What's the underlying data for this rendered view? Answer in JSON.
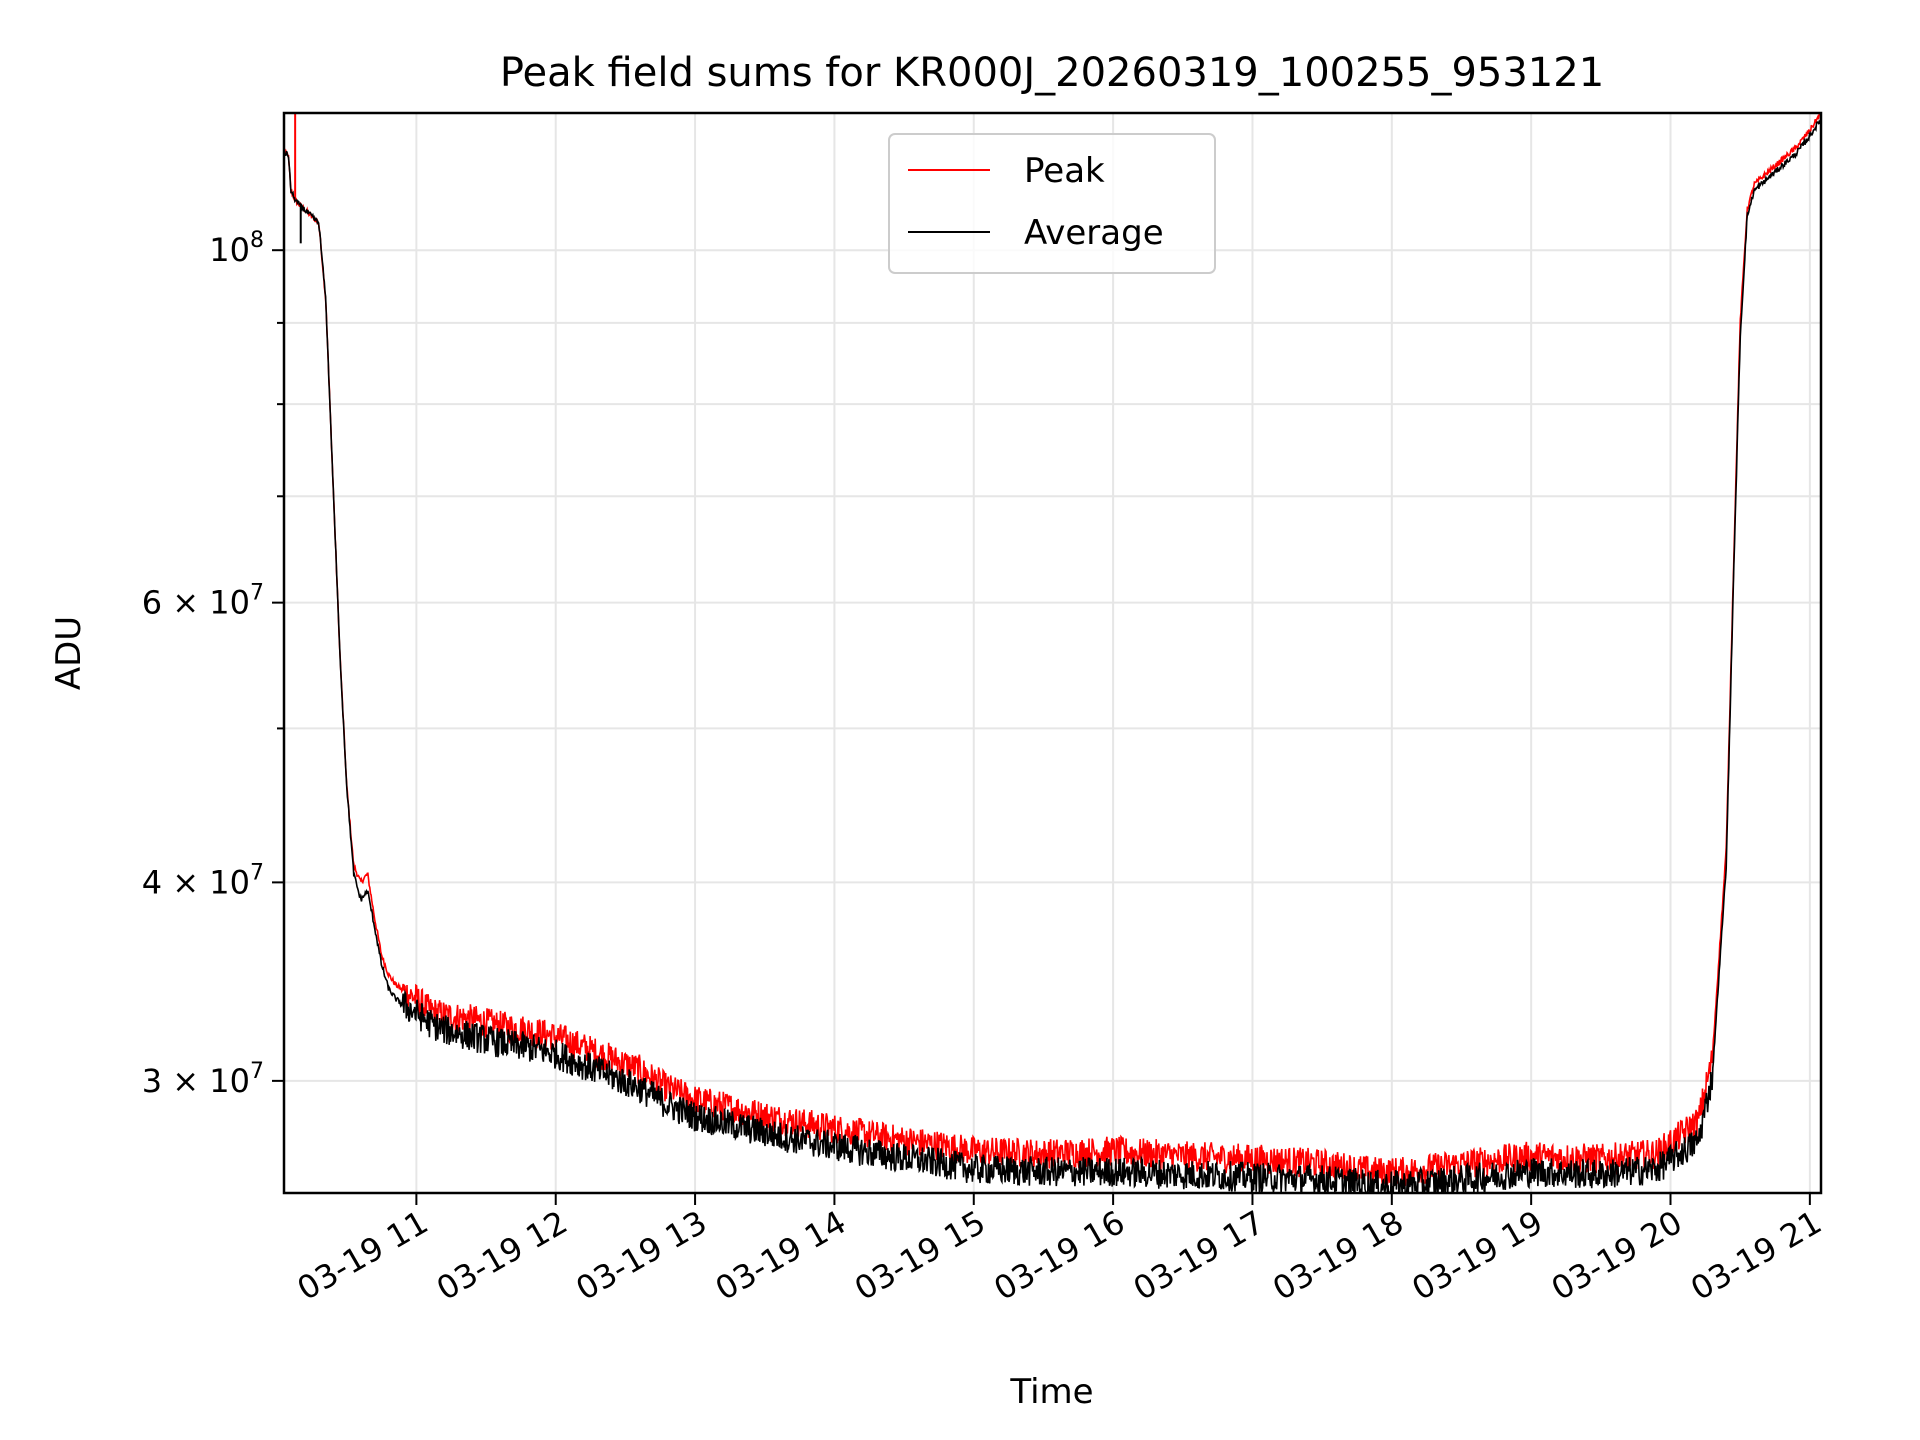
{
  "chart_data": {
    "type": "line",
    "title": "Peak field sums for KR000J_20260319_100255_953121",
    "xlabel": "Time",
    "ylabel": "ADU",
    "yscale": "log",
    "ylim": [
      25500000,
      122000000
    ],
    "xlim_hours": [
      10.05,
      21.08
    ],
    "grid": true,
    "legend_position": "top-center",
    "x_ticks": [
      {
        "label": "03-19 11",
        "hour": 11
      },
      {
        "label": "03-19 12",
        "hour": 12
      },
      {
        "label": "03-19 13",
        "hour": 13
      },
      {
        "label": "03-19 14",
        "hour": 14
      },
      {
        "label": "03-19 15",
        "hour": 15
      },
      {
        "label": "03-19 16",
        "hour": 16
      },
      {
        "label": "03-19 17",
        "hour": 17
      },
      {
        "label": "03-19 18",
        "hour": 18
      },
      {
        "label": "03-19 19",
        "hour": 19
      },
      {
        "label": "03-19 20",
        "hour": 20
      },
      {
        "label": "03-19 21",
        "hour": 21
      }
    ],
    "y_major_ticks": [
      {
        "value": 30000000,
        "mantissa": "3",
        "exponent": "7"
      },
      {
        "value": 40000000,
        "mantissa": "4",
        "exponent": "7"
      },
      {
        "value": 60000000,
        "mantissa": "6",
        "exponent": "7"
      },
      {
        "value": 100000000,
        "mantissa": "",
        "exponent": "8"
      }
    ],
    "y_minor_ticks": [
      50000000,
      70000000,
      80000000,
      90000000
    ],
    "series": [
      {
        "name": "Peak",
        "color": "#ff0000",
        "x": [
          10.05,
          10.08,
          10.1,
          10.12,
          10.15,
          10.2,
          10.3,
          10.35,
          10.4,
          10.45,
          10.5,
          10.55,
          10.6,
          10.65,
          10.7,
          10.75,
          10.8,
          10.85,
          10.9,
          10.95,
          11.0,
          11.1,
          11.2,
          11.4,
          11.6,
          11.8,
          12.0,
          12.2,
          12.4,
          12.6,
          12.8,
          13.0,
          13.3,
          13.6,
          14.0,
          14.4,
          14.8,
          15.0,
          15.5,
          16.0,
          16.5,
          17.0,
          17.5,
          17.9,
          18.1,
          18.5,
          19.0,
          19.5,
          19.9,
          20.2,
          20.3,
          20.4,
          20.45,
          20.5,
          20.55,
          20.6,
          20.65,
          20.7,
          20.8,
          20.9,
          21.0,
          21.08
        ],
        "y": [
          115000000,
          115000000,
          109000000,
          108000000,
          107000000,
          106000000,
          104000000,
          93000000,
          72000000,
          56000000,
          46000000,
          41000000,
          40000000,
          40500000,
          38000000,
          36000000,
          35000000,
          34500000,
          34200000,
          34000000,
          33800000,
          33200000,
          33000000,
          32800000,
          32500000,
          32300000,
          32000000,
          31500000,
          31000000,
          30500000,
          29700000,
          29200000,
          28800000,
          28400000,
          28000000,
          27600000,
          27300000,
          27100000,
          27000000,
          27100000,
          26900000,
          26800000,
          26600000,
          26300000,
          26300000,
          26600000,
          26900000,
          26800000,
          27000000,
          28300000,
          31000000,
          42000000,
          62000000,
          90000000,
          106000000,
          110000000,
          111000000,
          112000000,
          114000000,
          116000000,
          119000000,
          122000000
        ]
      },
      {
        "name": "Average",
        "color": "#000000",
        "x": [
          10.05,
          10.08,
          10.1,
          10.12,
          10.15,
          10.2,
          10.3,
          10.35,
          10.4,
          10.45,
          10.5,
          10.55,
          10.6,
          10.65,
          10.7,
          10.75,
          10.8,
          10.85,
          10.9,
          10.95,
          11.0,
          11.1,
          11.2,
          11.4,
          11.6,
          11.8,
          12.0,
          12.2,
          12.4,
          12.6,
          12.8,
          13.0,
          13.3,
          13.6,
          14.0,
          14.4,
          14.8,
          15.0,
          15.5,
          16.0,
          16.5,
          17.0,
          17.5,
          17.9,
          18.1,
          18.5,
          19.0,
          19.5,
          19.9,
          20.2,
          20.3,
          20.4,
          20.45,
          20.5,
          20.55,
          20.6,
          20.65,
          20.7,
          20.8,
          20.9,
          21.0,
          21.08
        ],
        "y": [
          115000000,
          115000000,
          109000000,
          108000000,
          107000000,
          106000000,
          104000000,
          93000000,
          72000000,
          56000000,
          46000000,
          40500000,
          39000000,
          39500000,
          37500000,
          35500000,
          34300000,
          33800000,
          33500000,
          33300000,
          33100000,
          32600000,
          32300000,
          32000000,
          31700000,
          31500000,
          31200000,
          30700000,
          30200000,
          29700000,
          29000000,
          28500000,
          28100000,
          27700000,
          27300000,
          26900000,
          26600000,
          26400000,
          26300000,
          26300000,
          26200000,
          26100000,
          26000000,
          25800000,
          25800000,
          26000000,
          26300000,
          26200000,
          26400000,
          27500000,
          30200000,
          41000000,
          61000000,
          88000000,
          105000000,
          109000000,
          110000000,
          111000000,
          113000000,
          115000000,
          118000000,
          121000000
        ]
      }
    ]
  }
}
